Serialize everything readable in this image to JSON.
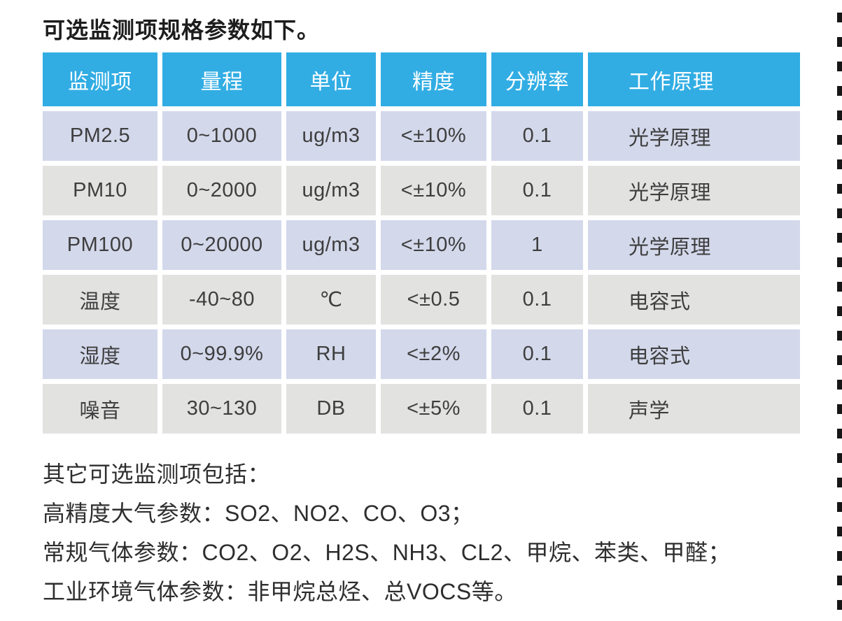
{
  "title": "可选监测项规格参数如下。",
  "table": {
    "headers": [
      "监测项",
      "量程",
      "单位",
      "精度",
      "分辨率",
      "工作原理"
    ],
    "rows": [
      [
        "PM2.5",
        "0~1000",
        "ug/m3",
        "<±10%",
        "0.1",
        "光学原理"
      ],
      [
        "PM10",
        "0~2000",
        "ug/m3",
        "<±10%",
        "0.1",
        "光学原理"
      ],
      [
        "PM100",
        "0~20000",
        "ug/m3",
        "<±10%",
        "1",
        "光学原理"
      ],
      [
        "温度",
        "-40~80",
        "℃",
        "<±0.5",
        "0.1",
        "电容式"
      ],
      [
        "湿度",
        "0~99.9%",
        "RH",
        "<±2%",
        "0.1",
        "电容式"
      ],
      [
        "噪音",
        "30~130",
        "DB",
        "<±5%",
        "0.1",
        "声学"
      ]
    ]
  },
  "notes": {
    "intro": "其它可选监测项包括：",
    "lines": [
      "高精度大气参数：SO2、NO2、CO、O3；",
      "常规气体参数：CO2、O2、H2S、NH3、CL2、甲烷、苯类、甲醛；",
      "工业环境气体参数：非甲烷总烃、总VOCS等。"
    ]
  },
  "colors": {
    "header_bg": "#31ADE4",
    "row_a": "#D3D8EB",
    "row_b": "#E2E2E1",
    "header_text": "#FFFFFF",
    "cell_text": "#3E3E3E",
    "body_text": "#2E2E2E",
    "dash": "#161616"
  }
}
